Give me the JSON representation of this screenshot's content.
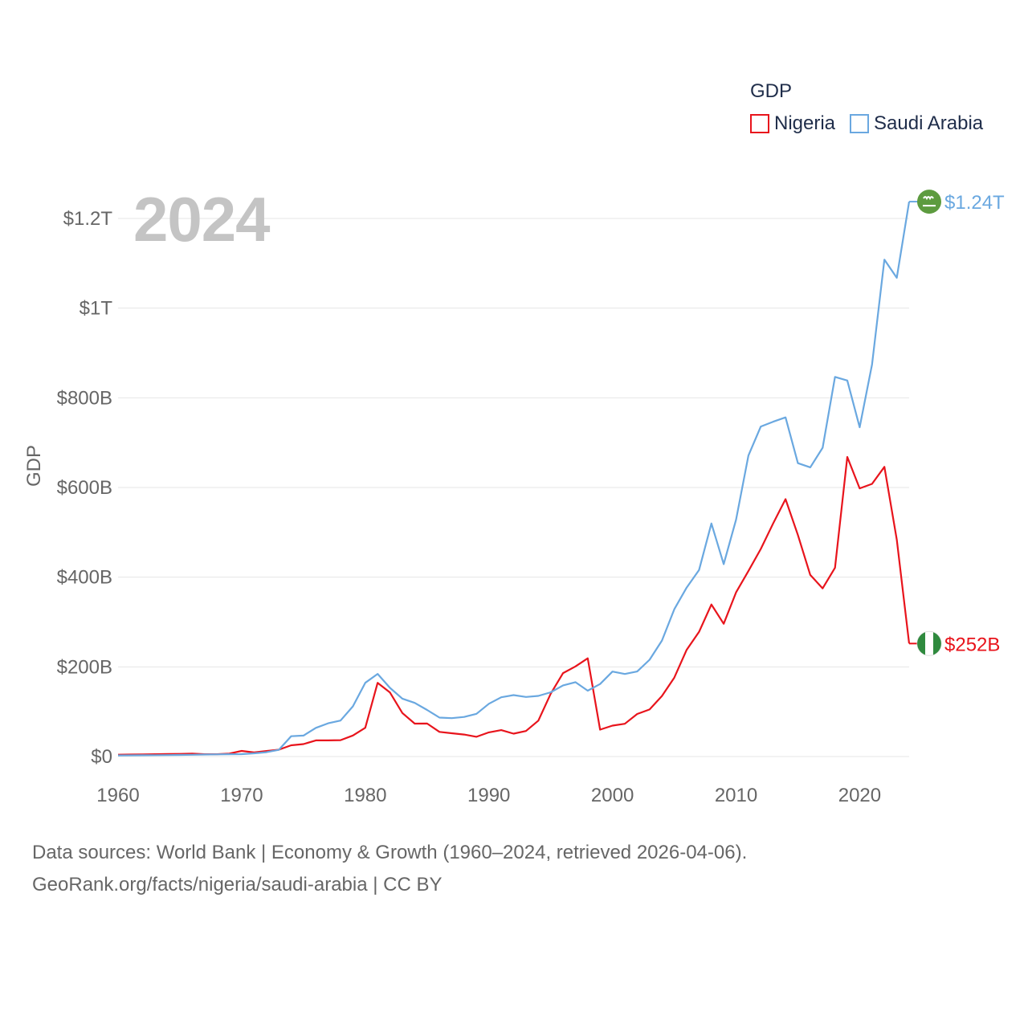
{
  "colors": {
    "nigeria": "#e8141c",
    "saudi": "#6aa8e0",
    "grid": "#e6e6e6",
    "axis_text": "#666666",
    "year": "#c4c4c4"
  },
  "legend": {
    "title": "GDP"
  },
  "year_label": "2024",
  "source": {
    "line1": "Data sources: World Bank | Economy & Growth (1960–2024, retrieved 2026-04-06).",
    "line2": "GeoRank.org/facts/nigeria/saudi-arabia | CC BY"
  },
  "chart_data": {
    "type": "line",
    "title": "GDP",
    "ylabel": "GDP",
    "xlabel": "",
    "xlim": [
      1960,
      2024
    ],
    "ylim": [
      0,
      1300000000000
    ],
    "x_ticks": [
      1960,
      1970,
      1980,
      1990,
      2000,
      2010,
      2020
    ],
    "y_ticks": [
      {
        "value": 0,
        "label": "$0"
      },
      {
        "value": 200000000000,
        "label": "$200B"
      },
      {
        "value": 400000000000,
        "label": "$400B"
      },
      {
        "value": 600000000000,
        "label": "$600B"
      },
      {
        "value": 800000000000,
        "label": "$800B"
      },
      {
        "value": 1000000000000,
        "label": "$1T"
      },
      {
        "value": 1200000000000,
        "label": "$1.2T"
      }
    ],
    "grid": true,
    "legend_position": "top-right",
    "x": [
      1960,
      1961,
      1962,
      1963,
      1964,
      1965,
      1966,
      1967,
      1968,
      1969,
      1970,
      1971,
      1972,
      1973,
      1974,
      1975,
      1976,
      1977,
      1978,
      1979,
      1980,
      1981,
      1982,
      1983,
      1984,
      1985,
      1986,
      1987,
      1988,
      1989,
      1990,
      1991,
      1992,
      1993,
      1994,
      1995,
      1996,
      1997,
      1998,
      1999,
      2000,
      2001,
      2002,
      2003,
      2004,
      2005,
      2006,
      2007,
      2008,
      2009,
      2010,
      2011,
      2012,
      2013,
      2014,
      2015,
      2016,
      2017,
      2018,
      2019,
      2020,
      2021,
      2022,
      2023,
      2024
    ],
    "series": [
      {
        "name": "Nigeria",
        "color": "#e8141c",
        "end_label": "$252B",
        "values": [
          4.2,
          4.5,
          4.9,
          5.2,
          5.5,
          5.9,
          6.4,
          5.2,
          5.2,
          6.6,
          12.5,
          9.2,
          12.3,
          15.2,
          25,
          27.8,
          36,
          36,
          36.5,
          47,
          64.2,
          164.5,
          142.8,
          97.1,
          73.5,
          73.7,
          55,
          52,
          49,
          44,
          54,
          59,
          51,
          57,
          80,
          140,
          186,
          201,
          219,
          60,
          69,
          73,
          95,
          105,
          135,
          176,
          238,
          278,
          339,
          296,
          366,
          414,
          463,
          520,
          574,
          494,
          405,
          375,
          421,
          668,
          598,
          608,
          646,
          484,
          252
        ]
      },
      {
        "name": "Saudi Arabia",
        "color": "#6aa8e0",
        "end_label": "$1.24T",
        "values": [
          2.5,
          2.7,
          2.9,
          3.1,
          3.2,
          3.6,
          4,
          4.4,
          4.8,
          5.2,
          5.4,
          7.2,
          9.7,
          14.9,
          45.4,
          46.8,
          64,
          74.2,
          80.3,
          111.9,
          164.5,
          184.3,
          153.2,
          129.2,
          119.6,
          103.9,
          86.9,
          85.7,
          88.3,
          95.3,
          117.6,
          132.2,
          137.1,
          132.9,
          135.2,
          143.3,
          158.7,
          165.9,
          146.8,
          161.7,
          189.5,
          184.1,
          189.6,
          215.8,
          258.7,
          328.5,
          376.9,
          415.9,
          519.8,
          429.1,
          528.2,
          671.2,
          735.9,
          746.6,
          756.4,
          654.3,
          644.9,
          688.6,
          846.6,
          838.6,
          734.3,
          874.2,
          1108.1,
          1067.6,
          1237.5
        ]
      }
    ]
  }
}
